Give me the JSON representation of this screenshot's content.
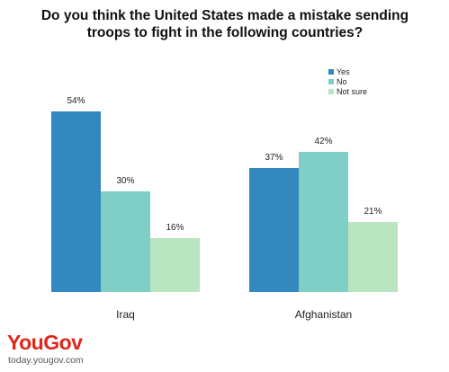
{
  "chart_data": {
    "type": "bar",
    "title": "Do you think the United States made a mistake sending troops to fight in the following countries?",
    "categories": [
      "Iraq",
      "Afghanistan"
    ],
    "series": [
      {
        "name": "Yes",
        "color": "#3288bf",
        "values": [
          54,
          37
        ],
        "value_labels": [
          "54%",
          "37%"
        ]
      },
      {
        "name": "No",
        "color": "#7fcfc7",
        "values": [
          30,
          42
        ],
        "value_labels": [
          "30%",
          "42%"
        ]
      },
      {
        "name": "Not sure",
        "color": "#b9e5c1",
        "values": [
          16,
          21
        ],
        "value_labels": [
          "16%",
          "21%"
        ]
      }
    ],
    "legend": "top-right",
    "logo": "YouGov",
    "source": "today.yougov.com"
  }
}
